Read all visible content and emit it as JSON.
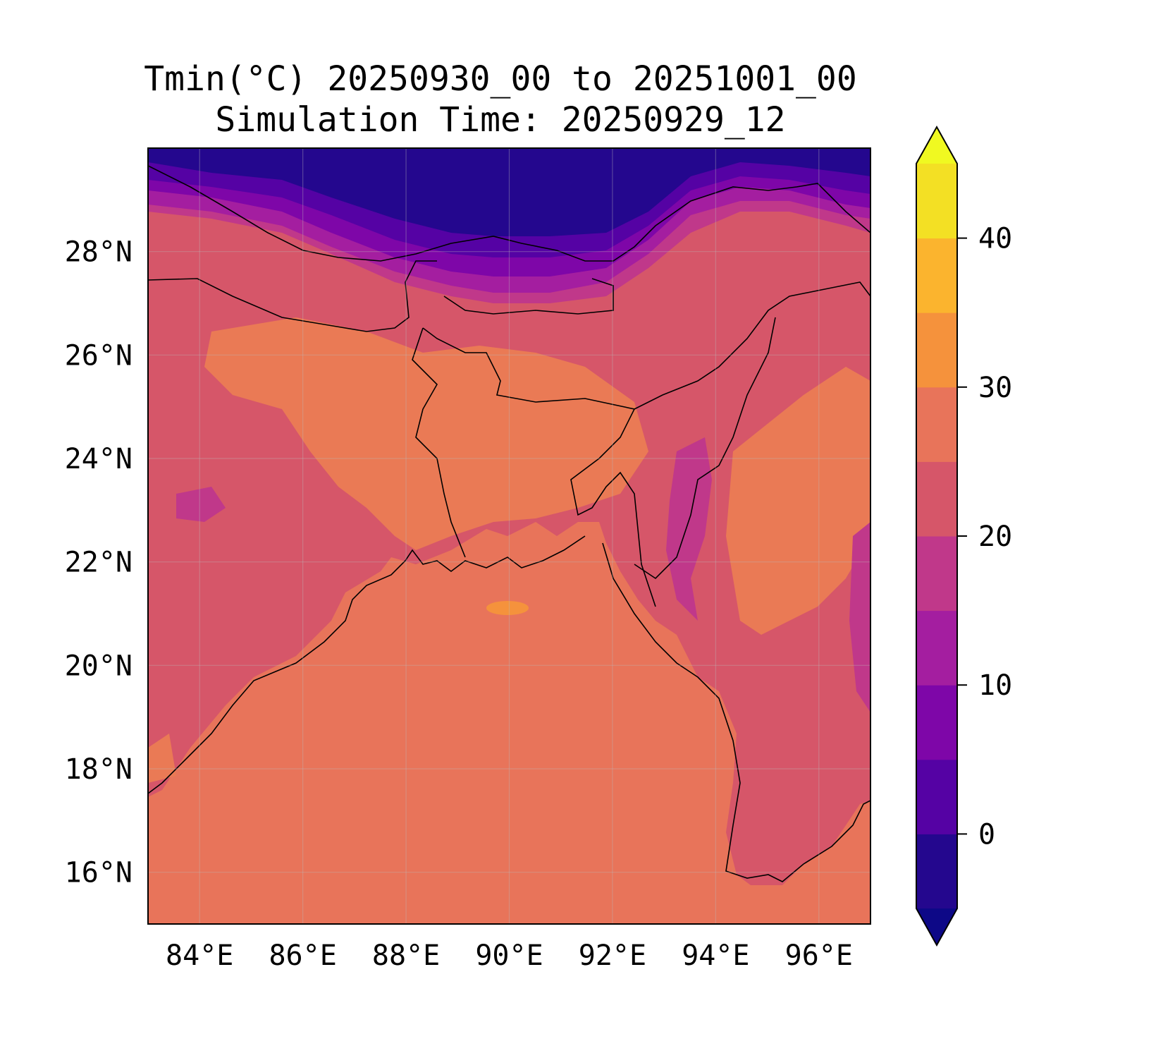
{
  "title": {
    "line1": "Tmin(°C) 20250930_00 to 20251001_00",
    "line2": "Simulation Time: 20250929_12"
  },
  "map": {
    "lon_range": [
      83,
      97
    ],
    "lat_range": [
      15,
      30
    ],
    "xticks": [
      "84°E",
      "86°E",
      "88°E",
      "90°E",
      "92°E",
      "94°E",
      "96°E"
    ],
    "xtick_values": [
      84,
      86,
      88,
      90,
      92,
      94,
      96
    ],
    "yticks": [
      "16°N",
      "18°N",
      "20°N",
      "22°N",
      "24°N",
      "26°N",
      "28°N"
    ],
    "ytick_values": [
      16,
      18,
      20,
      22,
      24,
      26,
      28
    ],
    "gridlines": true,
    "field_colors": {
      "sea": "#e8745a",
      "lowland": "#d65669",
      "warm_patch": "#ea7a55",
      "hot_patch": "#f5923c",
      "hills": "#c0388a",
      "high_hills": "#a41ea0",
      "mountains": "#7e06a8",
      "high_mountains": "#5502a4",
      "peaks": "#24078e"
    }
  },
  "colorbar": {
    "levels": [
      -5,
      0,
      5,
      10,
      15,
      20,
      25,
      30,
      35,
      40,
      45
    ],
    "colors": [
      "#24078e",
      "#5502a4",
      "#7e06a8",
      "#a41ea0",
      "#c0388a",
      "#d65669",
      "#e8745a",
      "#f5923c",
      "#fbb42e",
      "#f3e024"
    ],
    "under_color": "#0d0887",
    "over_color": "#f0f921",
    "tick_values": [
      0,
      10,
      20,
      30,
      40
    ],
    "tick_labels": [
      "0",
      "10",
      "20",
      "30",
      "40"
    ]
  }
}
